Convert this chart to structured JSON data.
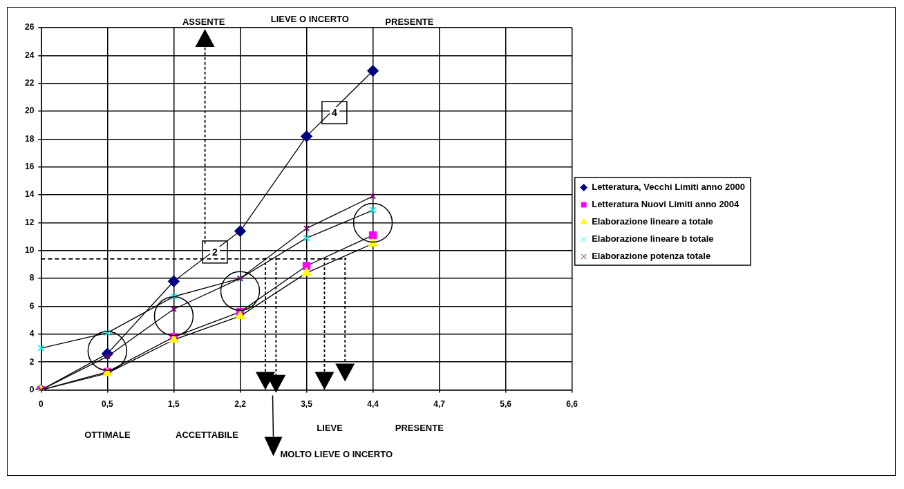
{
  "chart_data": {
    "type": "line",
    "categories": [
      "0",
      "0,5",
      "1,5",
      "2,2",
      "3,5",
      "4,4",
      "4,7",
      "5,6",
      "6,6"
    ],
    "series": [
      {
        "name": "Letteratura, Vecchi Limiti anno 2000",
        "color": "#000080",
        "marker": "diamond",
        "values": [
          0,
          2.6,
          7.8,
          11.4,
          18.2,
          22.9,
          null,
          null,
          null
        ]
      },
      {
        "name": "Letteratura Nuovi Limiti anno 2004",
        "color": "#ff00ff",
        "marker": "square",
        "values": [
          0,
          1.3,
          3.8,
          5.6,
          8.9,
          11.1,
          null,
          null,
          null
        ]
      },
      {
        "name": "Elaborazione lineare a totale",
        "color": "#ffff00",
        "marker": "triangle",
        "values": [
          0,
          1.2,
          3.6,
          5.3,
          8.4,
          10.5,
          null,
          null,
          null
        ]
      },
      {
        "name": "Elaborazione lineare b totale",
        "color": "#00ffff",
        "marker": "cross",
        "values": [
          3.0,
          4.1,
          6.7,
          8.0,
          10.9,
          12.9,
          null,
          null,
          null
        ]
      },
      {
        "name": "Elaborazione potenza totale",
        "color": "#800080",
        "marker": "cross",
        "values": [
          0,
          2.4,
          5.8,
          8.0,
          11.6,
          13.9,
          null,
          null,
          null
        ]
      }
    ],
    "ylim": [
      0,
      26
    ],
    "yticks": [
      0,
      2,
      4,
      6,
      8,
      10,
      12,
      14,
      16,
      18,
      20,
      22,
      24,
      26
    ],
    "ref_lines": [
      {
        "axis": "y",
        "value": 9.4,
        "line_style": "dashed"
      }
    ],
    "grid": true,
    "legend": "right",
    "line_style": "solid",
    "annotations": [
      "ASSENTE",
      "LIEVE O INCERTO",
      "PRESENTE",
      "OTTIMALE",
      "ACCETTABILE",
      "LIEVE",
      "PRESENTE",
      "MOLTO LIEVE O INCERTO",
      "4",
      "2"
    ]
  }
}
